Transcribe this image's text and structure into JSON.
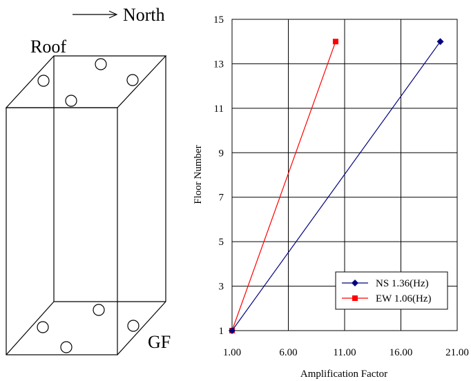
{
  "diagram": {
    "north_label": "North",
    "roof_label": "Roof",
    "ground_label": "GF"
  },
  "chart_data": {
    "type": "line",
    "xlabel": "Amplification Factor",
    "ylabel": "Floor Number",
    "xlim": [
      1.0,
      21.0
    ],
    "ylim": [
      1,
      15
    ],
    "x_ticks": [
      "1.00",
      "6.00",
      "11.00",
      "16.00",
      "21.00"
    ],
    "y_ticks": [
      "1",
      "3",
      "5",
      "7",
      "9",
      "11",
      "13",
      "15"
    ],
    "grid": true,
    "legend_position": "bottom-right",
    "series": [
      {
        "name": "NS 1.36(Hz)",
        "color": "#00007f",
        "marker": "diamond",
        "points": [
          {
            "x": 1.0,
            "y": 1
          },
          {
            "x": 19.5,
            "y": 14
          }
        ]
      },
      {
        "name": "EW 1.06(Hz)",
        "color": "#ff0000",
        "marker": "square",
        "points": [
          {
            "x": 1.0,
            "y": 1
          },
          {
            "x": 10.2,
            "y": 14
          }
        ]
      }
    ]
  }
}
